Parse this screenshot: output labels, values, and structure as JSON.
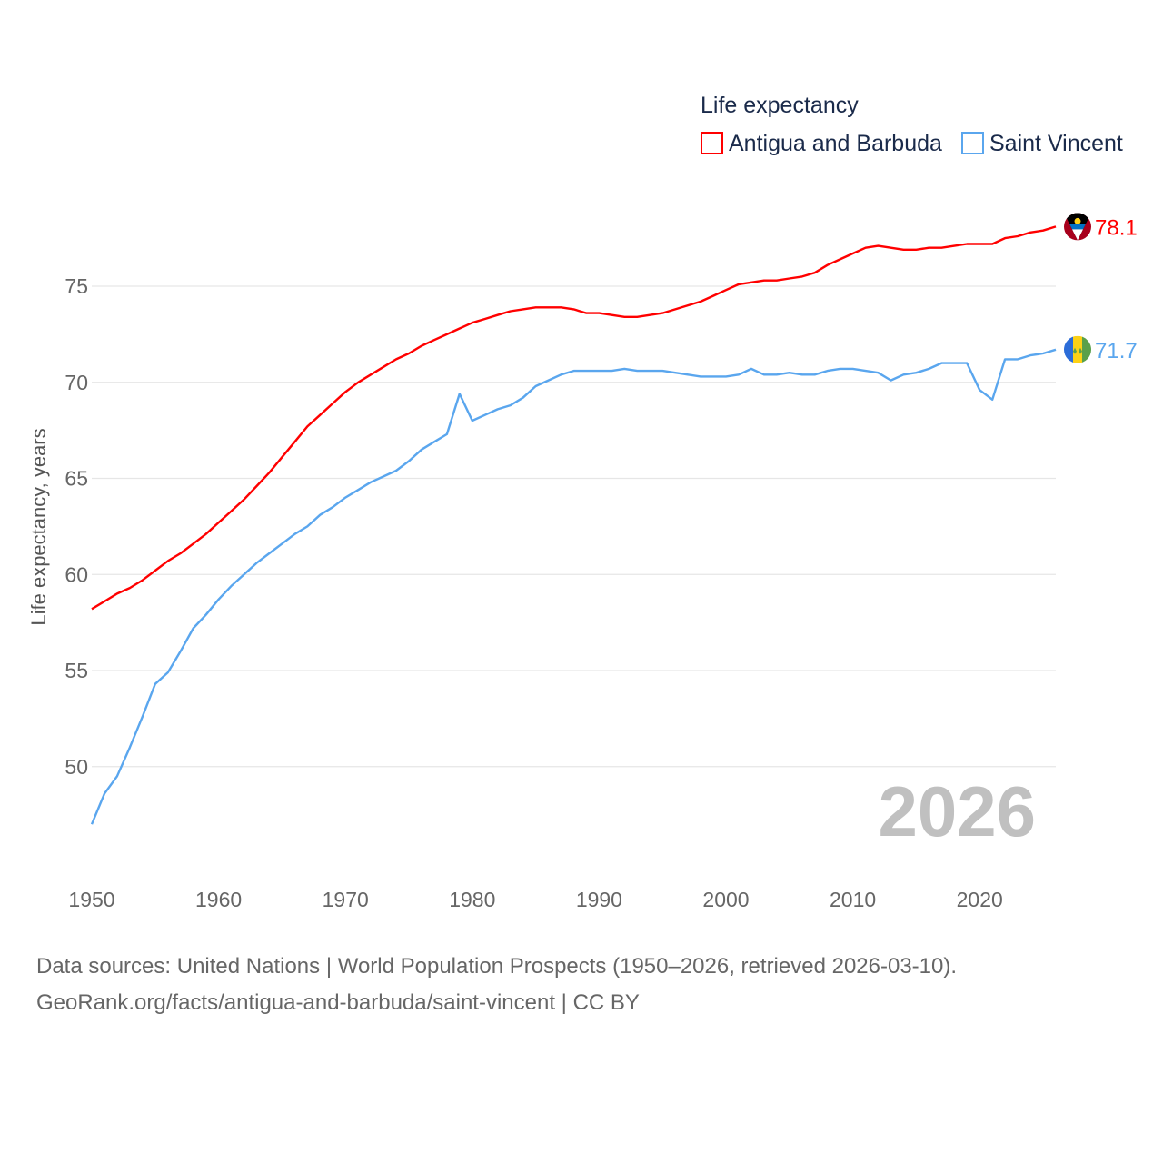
{
  "chart_data": {
    "type": "line",
    "title": "",
    "legend_title": "Life expectancy",
    "legend_placement": "top-right",
    "ylabel": "Life expectancy, years",
    "xlabel": "",
    "xlim": [
      1950,
      2026
    ],
    "ylim": [
      45.5,
      78.5
    ],
    "grid": true,
    "x_ticks": [
      "1950",
      "1960",
      "1970",
      "1980",
      "1990",
      "2000",
      "2010",
      "2020"
    ],
    "y_ticks": [
      "50",
      "55",
      "60",
      "65",
      "70",
      "75"
    ],
    "year_watermark": "2026",
    "x": [
      1950,
      1951,
      1952,
      1953,
      1954,
      1955,
      1956,
      1957,
      1958,
      1959,
      1960,
      1961,
      1962,
      1963,
      1964,
      1965,
      1966,
      1967,
      1968,
      1969,
      1970,
      1971,
      1972,
      1973,
      1974,
      1975,
      1976,
      1977,
      1978,
      1979,
      1980,
      1981,
      1982,
      1983,
      1984,
      1985,
      1986,
      1987,
      1988,
      1989,
      1990,
      1991,
      1992,
      1993,
      1994,
      1995,
      1996,
      1997,
      1998,
      1999,
      2000,
      2001,
      2002,
      2003,
      2004,
      2005,
      2006,
      2007,
      2008,
      2009,
      2010,
      2011,
      2012,
      2013,
      2014,
      2015,
      2016,
      2017,
      2018,
      2019,
      2020,
      2021,
      2022,
      2023,
      2024,
      2025,
      2026
    ],
    "series": [
      {
        "name": "Antigua and Barbuda",
        "color": "#ff0000",
        "end_label": "78.1",
        "values": [
          58.2,
          58.6,
          59.0,
          59.3,
          59.7,
          60.2,
          60.7,
          61.1,
          61.6,
          62.1,
          62.7,
          63.3,
          63.9,
          64.6,
          65.3,
          66.1,
          66.9,
          67.7,
          68.3,
          68.9,
          69.5,
          70.0,
          70.4,
          70.8,
          71.2,
          71.5,
          71.9,
          72.2,
          72.5,
          72.8,
          73.1,
          73.3,
          73.5,
          73.7,
          73.8,
          73.9,
          73.9,
          73.9,
          73.8,
          73.6,
          73.6,
          73.5,
          73.4,
          73.4,
          73.5,
          73.6,
          73.8,
          74.0,
          74.2,
          74.5,
          74.8,
          75.1,
          75.2,
          75.3,
          75.3,
          75.4,
          75.5,
          75.7,
          76.1,
          76.4,
          76.7,
          77.0,
          77.1,
          77.0,
          76.9,
          76.9,
          77.0,
          77.0,
          77.1,
          77.2,
          77.2,
          77.2,
          77.5,
          77.6,
          77.8,
          77.9,
          78.1
        ]
      },
      {
        "name": "Saint Vincent",
        "color": "#5aa6ee",
        "end_label": "71.7",
        "values": [
          47.0,
          48.6,
          49.5,
          51.0,
          52.6,
          54.3,
          54.9,
          56.0,
          57.2,
          57.9,
          58.7,
          59.4,
          60.0,
          60.6,
          61.1,
          61.6,
          62.1,
          62.5,
          63.1,
          63.5,
          64.0,
          64.4,
          64.8,
          65.1,
          65.4,
          65.9,
          66.5,
          66.9,
          67.3,
          69.4,
          68.0,
          68.3,
          68.6,
          68.8,
          69.2,
          69.8,
          70.1,
          70.4,
          70.6,
          70.6,
          70.6,
          70.6,
          70.7,
          70.6,
          70.6,
          70.6,
          70.5,
          70.4,
          70.3,
          70.3,
          70.3,
          70.4,
          70.7,
          70.4,
          70.4,
          70.5,
          70.4,
          70.4,
          70.6,
          70.7,
          70.7,
          70.6,
          70.5,
          70.1,
          70.4,
          70.5,
          70.7,
          71.0,
          71.0,
          71.0,
          69.6,
          69.1,
          71.2,
          71.2,
          71.4,
          71.5,
          71.7
        ]
      }
    ]
  },
  "footer": {
    "source_line": "Data sources: United Nations | World Population Prospects (1950–2026, retrieved 2026-03-10).",
    "credit_line": "GeoRank.org/facts/antigua-and-barbuda/saint-vincent | CC BY"
  }
}
